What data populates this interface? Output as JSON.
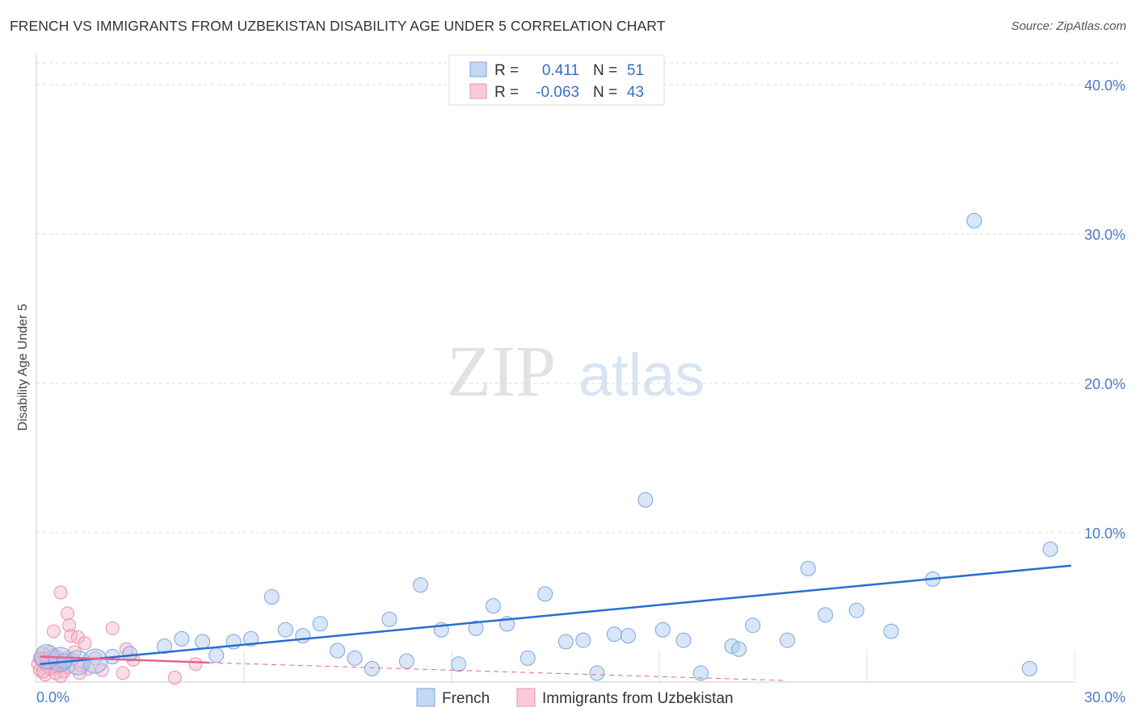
{
  "header": {
    "title": "FRENCH VS IMMIGRANTS FROM UZBEKISTAN DISABILITY AGE UNDER 5 CORRELATION CHART",
    "source": "Source: ZipAtlas.com"
  },
  "watermark": {
    "part1": "ZIP",
    "part2": "atlas"
  },
  "colors": {
    "french": "#a8c8f0",
    "french_line": "#2a6dd0",
    "uzbek": "#f4b6c8",
    "uzbek_line": "#e8628e",
    "tick": "#4a7cc7",
    "grid": "#dddddd"
  },
  "legend": {
    "rows": [
      {
        "r_label": "R =",
        "r_value": "0.411",
        "n_label": "N =",
        "n_value": "51"
      },
      {
        "r_label": "R =",
        "r_value": "-0.063",
        "n_label": "N =",
        "n_value": "43"
      }
    ]
  },
  "chart_data": {
    "type": "scatter",
    "title": "FRENCH VS IMMIGRANTS FROM UZBEKISTAN DISABILITY AGE UNDER 5 CORRELATION CHART",
    "xlabel": "",
    "ylabel": "Disability Age Under 5",
    "xlim": [
      0,
      30
    ],
    "ylim": [
      0,
      42
    ],
    "x_tick_labels": [
      "0.0%",
      "30.0%"
    ],
    "y_ticks": [
      10,
      20,
      30,
      40
    ],
    "y_tick_labels": [
      "10.0%",
      "20.0%",
      "30.0%",
      "40.0%"
    ],
    "grid": true,
    "series": [
      {
        "name": "French",
        "r": 0.411,
        "n": 51,
        "trend": {
          "x": [
            0.1,
            29.9
          ],
          "y": [
            1.2,
            7.8
          ]
        },
        "points": [
          {
            "x": 0.3,
            "y": 1.7,
            "big": 1
          },
          {
            "x": 0.7,
            "y": 1.5,
            "big": 1
          },
          {
            "x": 1.2,
            "y": 1.3,
            "big": 1
          },
          {
            "x": 1.7,
            "y": 1.4,
            "big": 1
          },
          {
            "x": 2.2,
            "y": 1.7
          },
          {
            "x": 2.7,
            "y": 1.9
          },
          {
            "x": 3.7,
            "y": 2.4
          },
          {
            "x": 4.2,
            "y": 2.9
          },
          {
            "x": 4.8,
            "y": 2.7
          },
          {
            "x": 5.2,
            "y": 1.8
          },
          {
            "x": 5.7,
            "y": 2.7
          },
          {
            "x": 6.2,
            "y": 2.9
          },
          {
            "x": 6.8,
            "y": 5.7
          },
          {
            "x": 7.2,
            "y": 3.5
          },
          {
            "x": 7.7,
            "y": 3.1
          },
          {
            "x": 8.2,
            "y": 3.9
          },
          {
            "x": 8.7,
            "y": 2.1
          },
          {
            "x": 9.2,
            "y": 1.6
          },
          {
            "x": 9.7,
            "y": 0.9
          },
          {
            "x": 10.2,
            "y": 4.2
          },
          {
            "x": 10.7,
            "y": 1.4
          },
          {
            "x": 11.1,
            "y": 6.5
          },
          {
            "x": 11.7,
            "y": 3.5
          },
          {
            "x": 12.2,
            "y": 1.2
          },
          {
            "x": 12.7,
            "y": 3.6
          },
          {
            "x": 13.2,
            "y": 5.1
          },
          {
            "x": 13.6,
            "y": 3.9
          },
          {
            "x": 14.2,
            "y": 1.6
          },
          {
            "x": 14.7,
            "y": 5.9
          },
          {
            "x": 15.3,
            "y": 2.7
          },
          {
            "x": 15.8,
            "y": 2.8
          },
          {
            "x": 16.2,
            "y": 0.6
          },
          {
            "x": 16.7,
            "y": 3.2
          },
          {
            "x": 17.1,
            "y": 3.1
          },
          {
            "x": 17.6,
            "y": 12.2
          },
          {
            "x": 18.1,
            "y": 3.5
          },
          {
            "x": 18.7,
            "y": 2.8
          },
          {
            "x": 19.2,
            "y": 0.6
          },
          {
            "x": 20.1,
            "y": 2.4
          },
          {
            "x": 20.3,
            "y": 2.2
          },
          {
            "x": 20.7,
            "y": 3.8
          },
          {
            "x": 21.7,
            "y": 2.8
          },
          {
            "x": 22.3,
            "y": 7.6
          },
          {
            "x": 22.8,
            "y": 4.5
          },
          {
            "x": 23.7,
            "y": 4.8
          },
          {
            "x": 24.7,
            "y": 3.4
          },
          {
            "x": 25.9,
            "y": 6.9
          },
          {
            "x": 27.1,
            "y": 30.9
          },
          {
            "x": 28.7,
            "y": 0.9
          },
          {
            "x": 29.3,
            "y": 8.9
          },
          {
            "x": 0.8,
            "y": 1.4
          }
        ]
      },
      {
        "name": "Immigrants from Uzbekistan",
        "r": -0.063,
        "n": 43,
        "trend_solid": {
          "x": [
            0.1,
            5.0
          ],
          "y": [
            1.7,
            1.3
          ]
        },
        "trend_dashed": {
          "x": [
            5.0,
            21.7
          ],
          "y": [
            1.3,
            0.1
          ]
        },
        "points": [
          {
            "x": 0.05,
            "y": 1.2
          },
          {
            "x": 0.1,
            "y": 0.8
          },
          {
            "x": 0.15,
            "y": 1.5
          },
          {
            "x": 0.2,
            "y": 1.9
          },
          {
            "x": 0.25,
            "y": 0.5
          },
          {
            "x": 0.3,
            "y": 1.1
          },
          {
            "x": 0.35,
            "y": 1.6
          },
          {
            "x": 0.4,
            "y": 0.9
          },
          {
            "x": 0.45,
            "y": 1.3
          },
          {
            "x": 0.5,
            "y": 1.8
          },
          {
            "x": 0.55,
            "y": 0.6
          },
          {
            "x": 0.6,
            "y": 1.0
          },
          {
            "x": 0.65,
            "y": 1.4
          },
          {
            "x": 0.5,
            "y": 3.4
          },
          {
            "x": 0.7,
            "y": 6.0
          },
          {
            "x": 0.75,
            "y": 1.2
          },
          {
            "x": 0.8,
            "y": 0.7
          },
          {
            "x": 0.85,
            "y": 1.6
          },
          {
            "x": 0.9,
            "y": 4.6
          },
          {
            "x": 0.95,
            "y": 3.8
          },
          {
            "x": 1.0,
            "y": 3.1
          },
          {
            "x": 1.05,
            "y": 1.5
          },
          {
            "x": 1.1,
            "y": 2.0
          },
          {
            "x": 1.2,
            "y": 3.0
          },
          {
            "x": 1.3,
            "y": 1.1
          },
          {
            "x": 1.4,
            "y": 2.6
          },
          {
            "x": 1.5,
            "y": 0.9
          },
          {
            "x": 1.7,
            "y": 1.6
          },
          {
            "x": 1.9,
            "y": 0.8
          },
          {
            "x": 2.2,
            "y": 3.6
          },
          {
            "x": 2.5,
            "y": 0.6
          },
          {
            "x": 2.6,
            "y": 2.2
          },
          {
            "x": 2.8,
            "y": 1.5
          },
          {
            "x": 0.3,
            "y": 1.3
          },
          {
            "x": 0.6,
            "y": 1.7
          },
          {
            "x": 0.2,
            "y": 0.7
          },
          {
            "x": 1.25,
            "y": 0.6
          },
          {
            "x": 4.6,
            "y": 1.2
          },
          {
            "x": 4.0,
            "y": 0.3
          },
          {
            "x": 0.4,
            "y": 2.0
          },
          {
            "x": 0.1,
            "y": 1.6
          },
          {
            "x": 0.9,
            "y": 1.0
          },
          {
            "x": 0.7,
            "y": 0.4
          }
        ]
      }
    ]
  },
  "bottom_legend": {
    "items": [
      {
        "label": "French"
      },
      {
        "label": "Immigrants from Uzbekistan"
      }
    ]
  }
}
